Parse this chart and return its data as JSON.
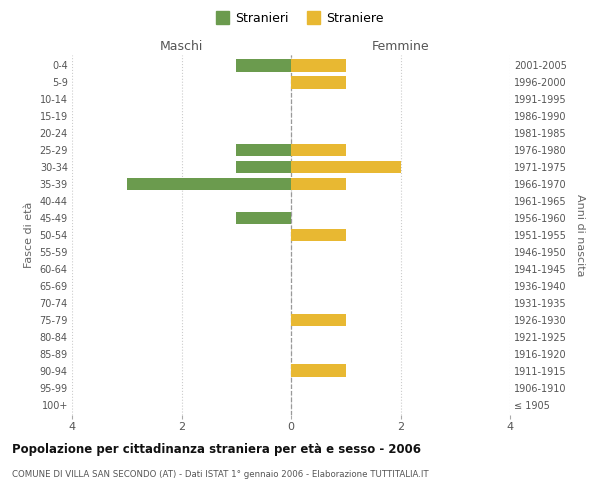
{
  "age_groups": [
    "100+",
    "95-99",
    "90-94",
    "85-89",
    "80-84",
    "75-79",
    "70-74",
    "65-69",
    "60-64",
    "55-59",
    "50-54",
    "45-49",
    "40-44",
    "35-39",
    "30-34",
    "25-29",
    "20-24",
    "15-19",
    "10-14",
    "5-9",
    "0-4"
  ],
  "birth_years": [
    "≤ 1905",
    "1906-1910",
    "1911-1915",
    "1916-1920",
    "1921-1925",
    "1926-1930",
    "1931-1935",
    "1936-1940",
    "1941-1945",
    "1946-1950",
    "1951-1955",
    "1956-1960",
    "1961-1965",
    "1966-1970",
    "1971-1975",
    "1976-1980",
    "1981-1985",
    "1986-1990",
    "1991-1995",
    "1996-2000",
    "2001-2005"
  ],
  "maschi_stranieri": [
    0,
    0,
    0,
    0,
    0,
    0,
    0,
    0,
    0,
    0,
    0,
    1,
    0,
    3,
    1,
    1,
    0,
    0,
    0,
    0,
    1
  ],
  "femmine_straniere": [
    0,
    0,
    1,
    0,
    0,
    1,
    0,
    0,
    0,
    0,
    1,
    0,
    0,
    1,
    2,
    1,
    0,
    0,
    0,
    1,
    1
  ],
  "color_maschi": "#6b9b4e",
  "color_femmine": "#e8b832",
  "xlim": 4,
  "title": "Popolazione per cittadinanza straniera per età e sesso - 2006",
  "subtitle": "COMUNE DI VILLA SAN SECONDO (AT) - Dati ISTAT 1° gennaio 2006 - Elaborazione TUTTITALIA.IT",
  "ylabel_left": "Fasce di età",
  "ylabel_right": "Anni di nascita",
  "legend_maschi": "Stranieri",
  "legend_femmine": "Straniere",
  "maschi_label": "Maschi",
  "femmine_label": "Femmine",
  "background_color": "#ffffff",
  "grid_color": "#cccccc"
}
